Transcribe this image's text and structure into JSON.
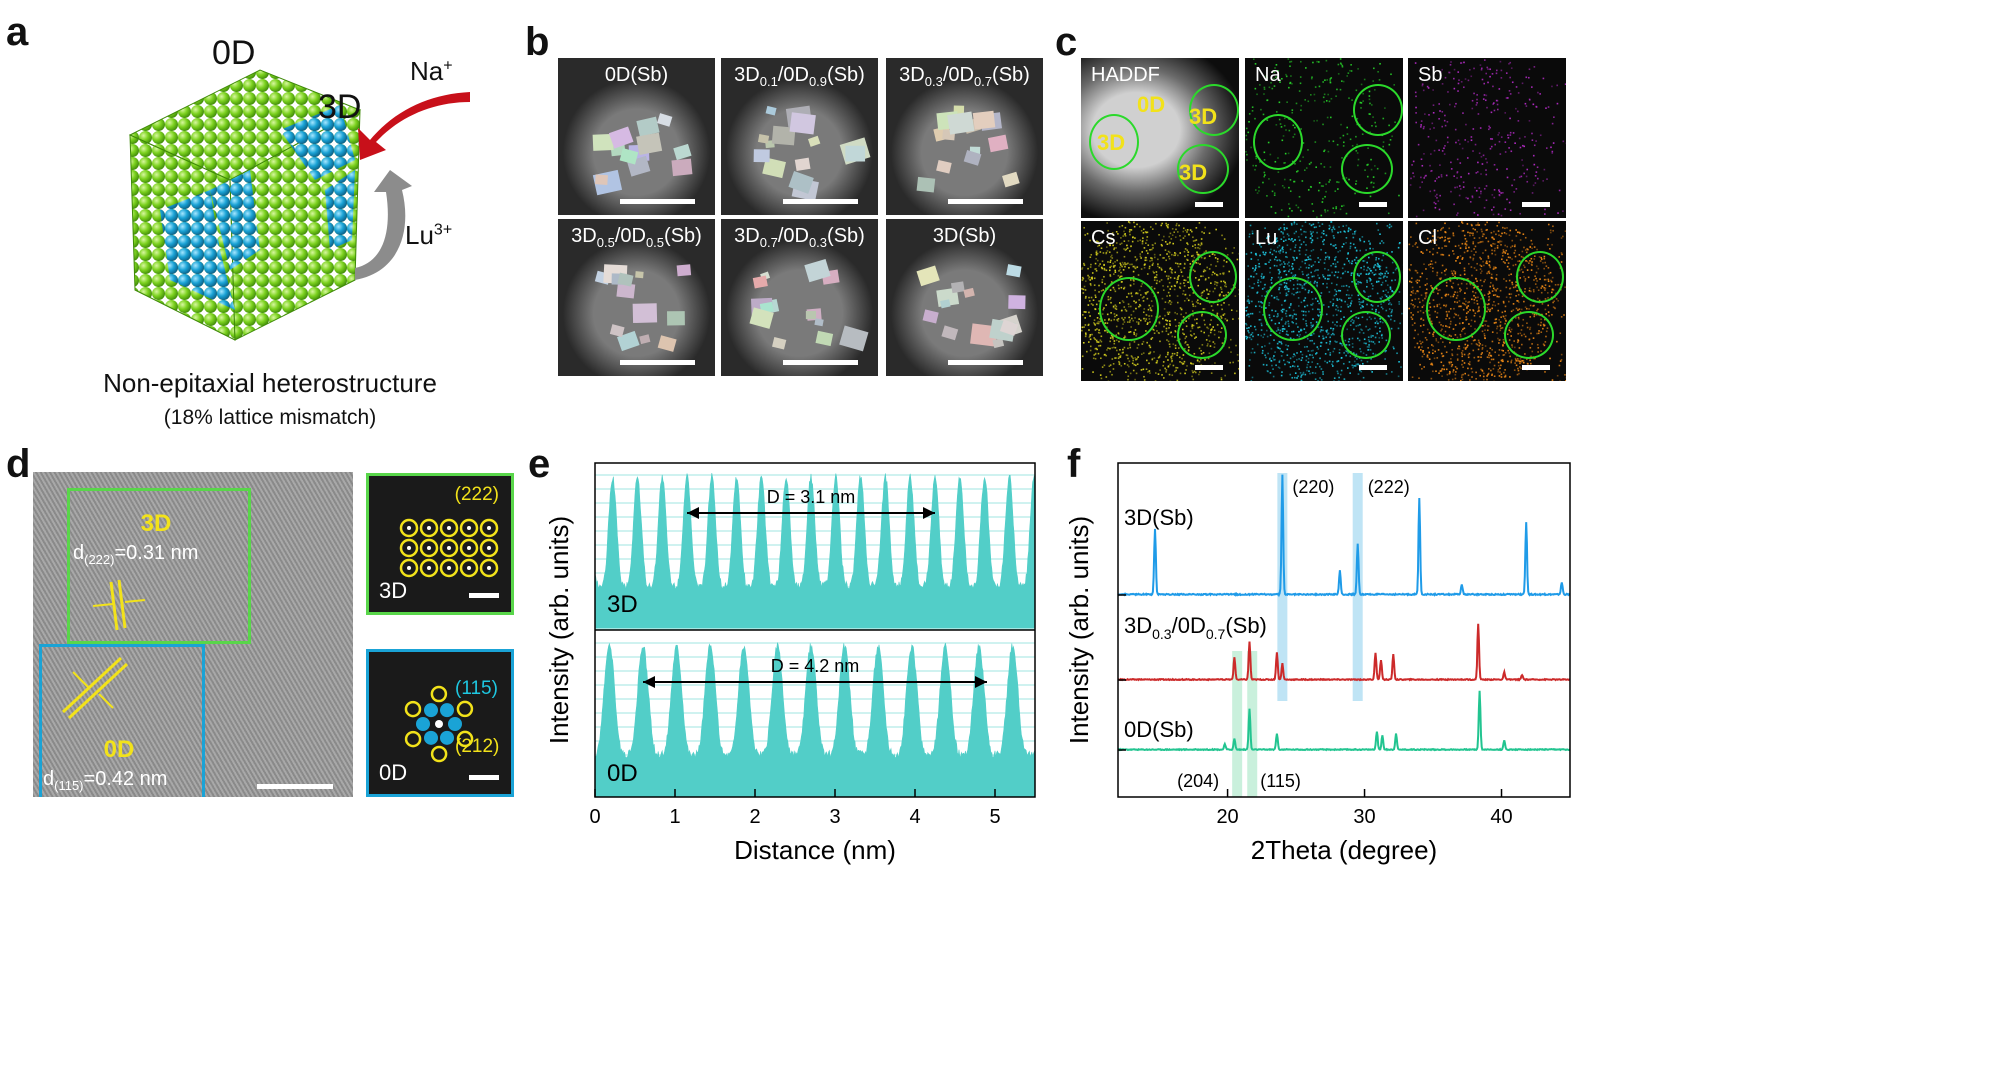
{
  "panels": {
    "a": "a",
    "b": "b",
    "c": "c",
    "d": "d",
    "e": "e",
    "f": "f"
  },
  "panel_a": {
    "label_0d": "0D",
    "label_3d": "3D",
    "ion_na": "Na",
    "ion_na_sup": "+",
    "ion_lu": "Lu",
    "ion_lu_sup": "3+",
    "caption": "Non-epitaxial heterostructure",
    "subcaption": "(18% lattice mismatch)",
    "colors": {
      "green": "#7cd21f",
      "blue": "#1aa3d6",
      "arrow_red": "#c8101a",
      "arrow_gray": "#8c8c8c"
    }
  },
  "panel_b": {
    "tiles": [
      {
        "base": "0D(Sb)",
        "sub1": "",
        "mid": "",
        "sub2": "",
        "tail": ""
      },
      {
        "base": "3D",
        "sub1": "0.1",
        "mid": "/0D",
        "sub2": "0.9",
        "tail": "(Sb)"
      },
      {
        "base": "3D",
        "sub1": "0.3",
        "mid": "/0D",
        "sub2": "0.7",
        "tail": "(Sb)"
      },
      {
        "base": "3D",
        "sub1": "0.5",
        "mid": "/0D",
        "sub2": "0.5",
        "tail": "(Sb)"
      },
      {
        "base": "3D",
        "sub1": "0.7",
        "mid": "/0D",
        "sub2": "0.3",
        "tail": "(Sb)"
      },
      {
        "base": "3D(Sb)",
        "sub1": "",
        "mid": "",
        "sub2": "",
        "tail": ""
      }
    ]
  },
  "panel_c": {
    "tiles": [
      "HADDF",
      "Na",
      "Sb",
      "Cs",
      "Lu",
      "Cl"
    ],
    "haddf_labels": {
      "zero_d": "0D",
      "three_d": "3D"
    },
    "colors": {
      "Na": "#27d42a",
      "Sb": "#b22bc4",
      "Cs": "#d8d21e",
      "Lu": "#1ec7e0",
      "Cl": "#f08a16"
    }
  },
  "panel_d": {
    "box3d_title": "3D",
    "box3d_d": "d",
    "box3d_sub": "(222)",
    "box3d_val": "=0.31 nm",
    "box0d_title": "0D",
    "box0d_d": "d",
    "box0d_sub": "(115)",
    "box0d_val": "=0.42 nm",
    "fft_top_label": "3D",
    "fft_top_index": "(222)",
    "fft_bot_label": "0D",
    "fft_bot_index1": "(115)",
    "fft_bot_index2": "(212)"
  },
  "chart_data": [
    {
      "type": "area",
      "panel": "e",
      "xlabel": "Distance (nm)",
      "ylabel": "Intensity (arb. units)",
      "xlim": [
        0,
        5.5
      ],
      "xticks": [
        0,
        1,
        2,
        3,
        4,
        5
      ],
      "series": [
        {
          "name": "3D",
          "annotation": "D = 3.1 nm",
          "span": [
            1.15,
            4.25
          ],
          "period_nm": 0.31,
          "peaks": 11
        },
        {
          "name": "0D",
          "annotation": "D = 4.2 nm",
          "span": [
            0.6,
            4.9
          ],
          "period_nm": 0.42,
          "peaks": 11
        }
      ],
      "color": "#52cec8"
    },
    {
      "type": "line",
      "panel": "f",
      "xlabel": "2Theta (degree)",
      "ylabel": "Intensity (arb. units)",
      "xlim": [
        12,
        45
      ],
      "xticks": [
        20,
        30,
        40
      ],
      "series": [
        {
          "name": "3D(Sb)",
          "color": "#1f9be8",
          "peaks": [
            [
              14.7,
              0.55
            ],
            [
              24.0,
              1.0
            ],
            [
              28.2,
              0.2
            ],
            [
              29.5,
              0.42
            ],
            [
              34.0,
              0.8
            ],
            [
              37.1,
              0.08
            ],
            [
              41.8,
              0.6
            ],
            [
              44.4,
              0.1
            ]
          ]
        },
        {
          "name_base": "3D",
          "name_sub1": "0.3",
          "name_mid": "/0D",
          "name_sub2": "0.7",
          "name_tail": "(Sb)",
          "color": "#cc2a2a",
          "peaks": [
            [
              20.5,
              0.25
            ],
            [
              21.6,
              0.42
            ],
            [
              23.6,
              0.3
            ],
            [
              24.0,
              0.18
            ],
            [
              30.8,
              0.3
            ],
            [
              31.2,
              0.22
            ],
            [
              32.1,
              0.28
            ],
            [
              38.3,
              0.62
            ],
            [
              40.2,
              0.08
            ],
            [
              41.5,
              0.05
            ]
          ]
        },
        {
          "name": "0D(Sb)",
          "color": "#22c490",
          "peaks": [
            [
              19.8,
              0.06
            ],
            [
              20.5,
              0.12
            ],
            [
              21.6,
              0.45
            ],
            [
              23.6,
              0.18
            ],
            [
              30.9,
              0.2
            ],
            [
              31.3,
              0.16
            ],
            [
              32.3,
              0.18
            ],
            [
              38.4,
              0.65
            ],
            [
              40.2,
              0.1
            ]
          ]
        }
      ],
      "highlights": [
        {
          "label": "(220)",
          "x": 24.0
        },
        {
          "label": "(222)",
          "x": 29.5
        },
        {
          "label": "(204)",
          "x": 20.7
        },
        {
          "label": "(115)",
          "x": 21.8
        }
      ]
    }
  ]
}
